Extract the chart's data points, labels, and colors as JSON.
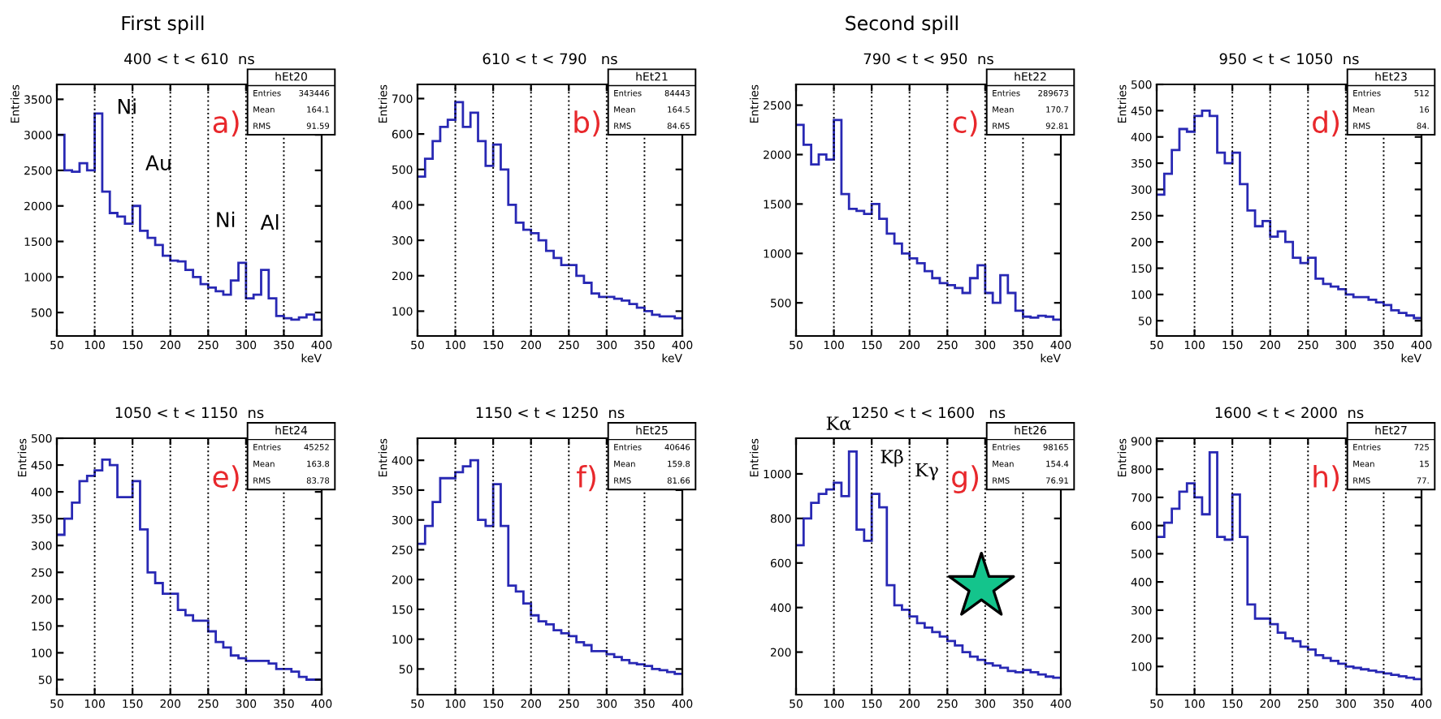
{
  "chart_data": [
    {
      "type": "histogram",
      "title": "400 < t < 610  ns",
      "subtitle": "First spill",
      "xlabel": "keV",
      "ylabel": "Entries",
      "color": "#2828b4",
      "grid": "x",
      "xlim": [
        50,
        400
      ],
      "xticks": [
        50,
        100,
        150,
        200,
        250,
        300,
        350,
        400
      ],
      "ylim": [
        170,
        3710
      ],
      "yticks": [
        500,
        1000,
        1500,
        2000,
        2500,
        3000,
        3500
      ],
      "bins": [
        50,
        60,
        70,
        80,
        90,
        100,
        110,
        120,
        130,
        140,
        150,
        160,
        170,
        180,
        190,
        200,
        210,
        220,
        230,
        240,
        250,
        260,
        270,
        280,
        290,
        300,
        310,
        320,
        330,
        340,
        350,
        360,
        370,
        380,
        390,
        400
      ],
      "values": [
        3000,
        2500,
        2480,
        2600,
        2500,
        3300,
        2200,
        1900,
        1850,
        1750,
        2000,
        1650,
        1550,
        1450,
        1300,
        1230,
        1220,
        1100,
        1000,
        900,
        850,
        800,
        750,
        950,
        1200,
        700,
        750,
        1100,
        700,
        450,
        420,
        400,
        430,
        470,
        400
      ],
      "annotations": [
        "a)",
        "hEt20",
        "Entries 343446",
        "Mean 164.1",
        "RMS 91.59",
        {
          "text": "Ni",
          "x": 105,
          "y": 3300
        },
        {
          "text": "Au",
          "x": 155,
          "y": 2000
        },
        {
          "text": "Ni",
          "x": 295,
          "y": 1200
        },
        {
          "text": "Al",
          "x": 325,
          "y": 1100
        }
      ]
    },
    {
      "type": "histogram",
      "title": "610 < t < 790   ns",
      "xlabel": "keV",
      "ylabel": "Entries",
      "color": "#2828b4",
      "grid": "x",
      "xlim": [
        50,
        400
      ],
      "xticks": [
        50,
        100,
        150,
        200,
        250,
        300,
        350,
        400
      ],
      "ylim": [
        30,
        740
      ],
      "yticks": [
        100,
        200,
        300,
        400,
        500,
        600,
        700
      ],
      "bins": [
        50,
        60,
        70,
        80,
        90,
        100,
        110,
        120,
        130,
        140,
        150,
        160,
        170,
        180,
        190,
        200,
        210,
        220,
        230,
        240,
        250,
        260,
        270,
        280,
        290,
        300,
        310,
        320,
        330,
        340,
        350,
        360,
        370,
        380,
        390,
        400
      ],
      "values": [
        480,
        530,
        580,
        620,
        640,
        690,
        620,
        660,
        580,
        510,
        570,
        500,
        400,
        350,
        330,
        320,
        300,
        270,
        250,
        230,
        230,
        200,
        180,
        150,
        140,
        140,
        135,
        130,
        120,
        110,
        100,
        90,
        85,
        85,
        80
      ],
      "annotations": [
        "b)",
        "hEt21",
        "Entries 84443",
        "Mean 164.5",
        "RMS 84.65"
      ]
    },
    {
      "type": "histogram",
      "title": "790 < t < 950  ns",
      "subtitle": "Second spill",
      "xlabel": "keV",
      "ylabel": "Entries",
      "color": "#2828b4",
      "grid": "x",
      "xlim": [
        50,
        400
      ],
      "xticks": [
        50,
        100,
        150,
        200,
        250,
        300,
        350,
        400
      ],
      "ylim": [
        165,
        2710
      ],
      "yticks": [
        500,
        1000,
        1500,
        2000,
        2500
      ],
      "bins": [
        50,
        60,
        70,
        80,
        90,
        100,
        110,
        120,
        130,
        140,
        150,
        160,
        170,
        180,
        190,
        200,
        210,
        220,
        230,
        240,
        250,
        260,
        270,
        280,
        290,
        300,
        310,
        320,
        330,
        340,
        350,
        360,
        370,
        380,
        390,
        400
      ],
      "values": [
        2300,
        2100,
        1900,
        2000,
        1950,
        2350,
        1600,
        1450,
        1430,
        1400,
        1500,
        1350,
        1200,
        1100,
        1000,
        950,
        900,
        820,
        750,
        700,
        680,
        650,
        600,
        750,
        880,
        600,
        500,
        780,
        600,
        420,
        360,
        350,
        370,
        360,
        330
      ],
      "annotations": [
        "c)",
        "hEt22",
        "Entries 289673",
        "Mean 170.7",
        "RMS 92.81"
      ]
    },
    {
      "type": "histogram",
      "title": "950 < t < 1050  ns",
      "xlabel": "keV",
      "ylabel": "Entries",
      "color": "#2828b4",
      "grid": "x",
      "xlim": [
        50,
        400
      ],
      "xticks": [
        50,
        100,
        150,
        200,
        250,
        300,
        350,
        400
      ],
      "ylim": [
        21,
        500
      ],
      "yticks": [
        50,
        100,
        150,
        200,
        250,
        300,
        350,
        400,
        450,
        500
      ],
      "bins": [
        50,
        60,
        70,
        80,
        90,
        100,
        110,
        120,
        130,
        140,
        150,
        160,
        170,
        180,
        190,
        200,
        210,
        220,
        230,
        240,
        250,
        260,
        270,
        280,
        290,
        300,
        310,
        320,
        330,
        340,
        350,
        360,
        370,
        380,
        390,
        400
      ],
      "values": [
        290,
        330,
        375,
        415,
        410,
        440,
        450,
        440,
        370,
        350,
        370,
        310,
        260,
        230,
        240,
        210,
        220,
        200,
        170,
        160,
        170,
        130,
        120,
        115,
        110,
        100,
        95,
        95,
        90,
        85,
        80,
        70,
        65,
        60,
        55
      ],
      "annotations": [
        "d)",
        "hEt23",
        "Entries 512",
        "Mean 16",
        "RMS 84."
      ]
    },
    {
      "type": "histogram",
      "title": "1050 < t < 1150  ns",
      "ylabel": "Entries",
      "color": "#2828b4",
      "grid": "x",
      "xlim": [
        50,
        400
      ],
      "xticks": [
        50,
        100,
        150,
        200,
        250,
        300,
        350,
        400
      ],
      "ylim": [
        22,
        500
      ],
      "yticks": [
        50,
        100,
        150,
        200,
        250,
        300,
        350,
        400,
        450,
        500
      ],
      "bins": [
        50,
        60,
        70,
        80,
        90,
        100,
        110,
        120,
        130,
        140,
        150,
        160,
        170,
        180,
        190,
        200,
        210,
        220,
        230,
        240,
        250,
        260,
        270,
        280,
        290,
        300,
        310,
        320,
        330,
        340,
        350,
        360,
        370,
        380,
        390,
        400
      ],
      "values": [
        320,
        350,
        380,
        420,
        430,
        440,
        460,
        450,
        390,
        390,
        420,
        330,
        250,
        230,
        210,
        210,
        180,
        170,
        160,
        160,
        140,
        120,
        110,
        95,
        90,
        85,
        85,
        85,
        80,
        70,
        70,
        65,
        55,
        50,
        50
      ],
      "annotations": [
        "e)",
        "hEt24",
        "Entries 45252",
        "Mean 163.8",
        "RMS 83.78"
      ]
    },
    {
      "type": "histogram",
      "title": "1150 < t < 1250  ns",
      "ylabel": "Entries",
      "color": "#2828b4",
      "grid": "x",
      "xlim": [
        50,
        400
      ],
      "xticks": [
        50,
        100,
        150,
        200,
        250,
        300,
        350,
        400
      ],
      "ylim": [
        7,
        437
      ],
      "yticks": [
        50,
        100,
        150,
        200,
        250,
        300,
        350,
        400
      ],
      "bins": [
        50,
        60,
        70,
        80,
        90,
        100,
        110,
        120,
        130,
        140,
        150,
        160,
        170,
        180,
        190,
        200,
        210,
        220,
        230,
        240,
        250,
        260,
        270,
        280,
        290,
        300,
        310,
        320,
        330,
        340,
        350,
        360,
        370,
        380,
        390,
        400
      ],
      "values": [
        260,
        290,
        330,
        370,
        370,
        380,
        390,
        400,
        300,
        290,
        360,
        290,
        190,
        180,
        160,
        140,
        130,
        125,
        115,
        110,
        105,
        95,
        90,
        80,
        80,
        75,
        70,
        65,
        60,
        58,
        55,
        50,
        48,
        45,
        42
      ],
      "annotations": [
        "f)",
        "hEt25",
        "Entries 40646",
        "Mean 159.8",
        "RMS 81.66"
      ]
    },
    {
      "type": "histogram",
      "title": "1250 < t < 1600   ns",
      "ylabel": "Entries",
      "color": "#2828b4",
      "grid": "x",
      "xlim": [
        50,
        400
      ],
      "xticks": [
        50,
        100,
        150,
        200,
        250,
        300,
        350,
        400
      ],
      "ylim": [
        9,
        1160
      ],
      "yticks": [
        200,
        400,
        600,
        800,
        1000
      ],
      "bins": [
        50,
        60,
        70,
        80,
        90,
        100,
        110,
        120,
        130,
        140,
        150,
        160,
        170,
        180,
        190,
        200,
        210,
        220,
        230,
        240,
        250,
        260,
        270,
        280,
        290,
        300,
        310,
        320,
        330,
        340,
        350,
        360,
        370,
        380,
        390,
        400
      ],
      "values": [
        680,
        800,
        870,
        910,
        930,
        960,
        900,
        1100,
        750,
        700,
        910,
        850,
        500,
        410,
        390,
        360,
        330,
        310,
        290,
        270,
        250,
        230,
        200,
        180,
        165,
        150,
        140,
        130,
        115,
        110,
        120,
        110,
        100,
        90,
        85
      ],
      "annotations": [
        "g)",
        "hEt26",
        "Entries 98165",
        "Mean 154.4",
        "RMS 76.91",
        {
          "text": "Kα",
          "x": 125,
          "y": 1100
        },
        {
          "text": "Kβ",
          "x": 155,
          "y": 910
        },
        {
          "text": "Kγ",
          "x": 165,
          "y": 850
        }
      ]
    },
    {
      "type": "histogram",
      "title": "1600 < t < 2000  ns",
      "ylabel": "Entries",
      "color": "#2828b4",
      "grid": "x",
      "xlim": [
        50,
        400
      ],
      "xticks": [
        50,
        100,
        150,
        200,
        250,
        300,
        350,
        400
      ],
      "ylim": [
        0,
        910
      ],
      "yticks": [
        100,
        200,
        300,
        400,
        500,
        600,
        700,
        800,
        900
      ],
      "bins": [
        50,
        60,
        70,
        80,
        90,
        100,
        110,
        120,
        130,
        140,
        150,
        160,
        170,
        180,
        190,
        200,
        210,
        220,
        230,
        240,
        250,
        260,
        270,
        280,
        290,
        300,
        310,
        320,
        330,
        340,
        350,
        360,
        370,
        380,
        390,
        400
      ],
      "values": [
        560,
        610,
        660,
        720,
        750,
        700,
        640,
        860,
        560,
        550,
        710,
        560,
        320,
        270,
        270,
        250,
        220,
        200,
        190,
        170,
        160,
        140,
        130,
        120,
        110,
        100,
        95,
        90,
        85,
        80,
        75,
        70,
        65,
        60,
        55
      ],
      "annotations": [
        "h)",
        "hEt27",
        "Entries 725",
        "Mean 15",
        "RMS 77."
      ]
    }
  ]
}
